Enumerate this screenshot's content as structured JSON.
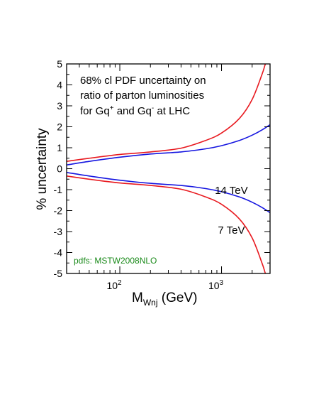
{
  "chart_data": {
    "type": "line",
    "title": "",
    "annotation_lines": [
      "68% cl PDF uncertainty on",
      "ratio of parton luminosities"
    ],
    "annotation_line3": {
      "prefix": "for Gq",
      "sup1": "+",
      "middle": " and Gq",
      "sup2": "-",
      "suffix": " at LHC"
    },
    "pdf_label": "pdfs: MSTW2008NLO",
    "pdf_label_color": "#1a8a1a",
    "xlabel": {
      "main": "M",
      "sub": "Wnj",
      "unit": " (GeV)"
    },
    "ylabel": "% uncertainty",
    "x_scale": "log",
    "xlim": [
      30,
      3000
    ],
    "ylim": [
      -5,
      5
    ],
    "x_major_ticks": [
      {
        "value": 100,
        "base": "10",
        "exp": "2"
      },
      {
        "value": 1000,
        "base": "10",
        "exp": "3"
      }
    ],
    "y_ticks": [
      -5,
      -4,
      -3,
      -2,
      -1,
      0,
      1,
      2,
      3,
      4,
      5
    ],
    "y_tick_labels": [
      "-5",
      "-4",
      "-3",
      "-2",
      "-1",
      "0",
      "1",
      "2",
      "3",
      "4",
      "5"
    ],
    "grid": false,
    "curve_labels": [
      {
        "text": "14 TeV",
        "x": 1250,
        "y": -1.2
      },
      {
        "text": "7 TeV",
        "x": 1250,
        "y": -3.1
      }
    ],
    "series": [
      {
        "color": "#e8191f",
        "x": [
          30,
          50,
          100,
          200,
          400,
          700,
          1000,
          1500,
          2000,
          2500,
          2700,
          3000
        ],
        "y": [
          0.35,
          0.5,
          0.68,
          0.8,
          0.98,
          1.35,
          1.7,
          2.4,
          3.3,
          4.5,
          5.0,
          5.6
        ]
      },
      {
        "color": "#e8191f",
        "x": [
          30,
          50,
          100,
          200,
          400,
          700,
          1000,
          1500,
          2000,
          2500,
          2700,
          3000
        ],
        "y": [
          -0.35,
          -0.5,
          -0.68,
          -0.8,
          -0.98,
          -1.35,
          -1.7,
          -2.4,
          -3.3,
          -4.5,
          -5.0,
          -5.6
        ]
      },
      {
        "color": "#1515e0",
        "x": [
          30,
          50,
          100,
          200,
          400,
          700,
          1000,
          1500,
          2000,
          2500,
          3000
        ],
        "y": [
          0.18,
          0.35,
          0.55,
          0.7,
          0.8,
          0.95,
          1.1,
          1.35,
          1.6,
          1.85,
          2.1
        ]
      },
      {
        "color": "#1515e0",
        "x": [
          30,
          50,
          100,
          200,
          400,
          700,
          1000,
          1500,
          2000,
          2500,
          3000
        ],
        "y": [
          -0.18,
          -0.35,
          -0.55,
          -0.7,
          -0.8,
          -0.95,
          -1.1,
          -1.35,
          -1.6,
          -1.85,
          -2.1
        ]
      }
    ]
  }
}
